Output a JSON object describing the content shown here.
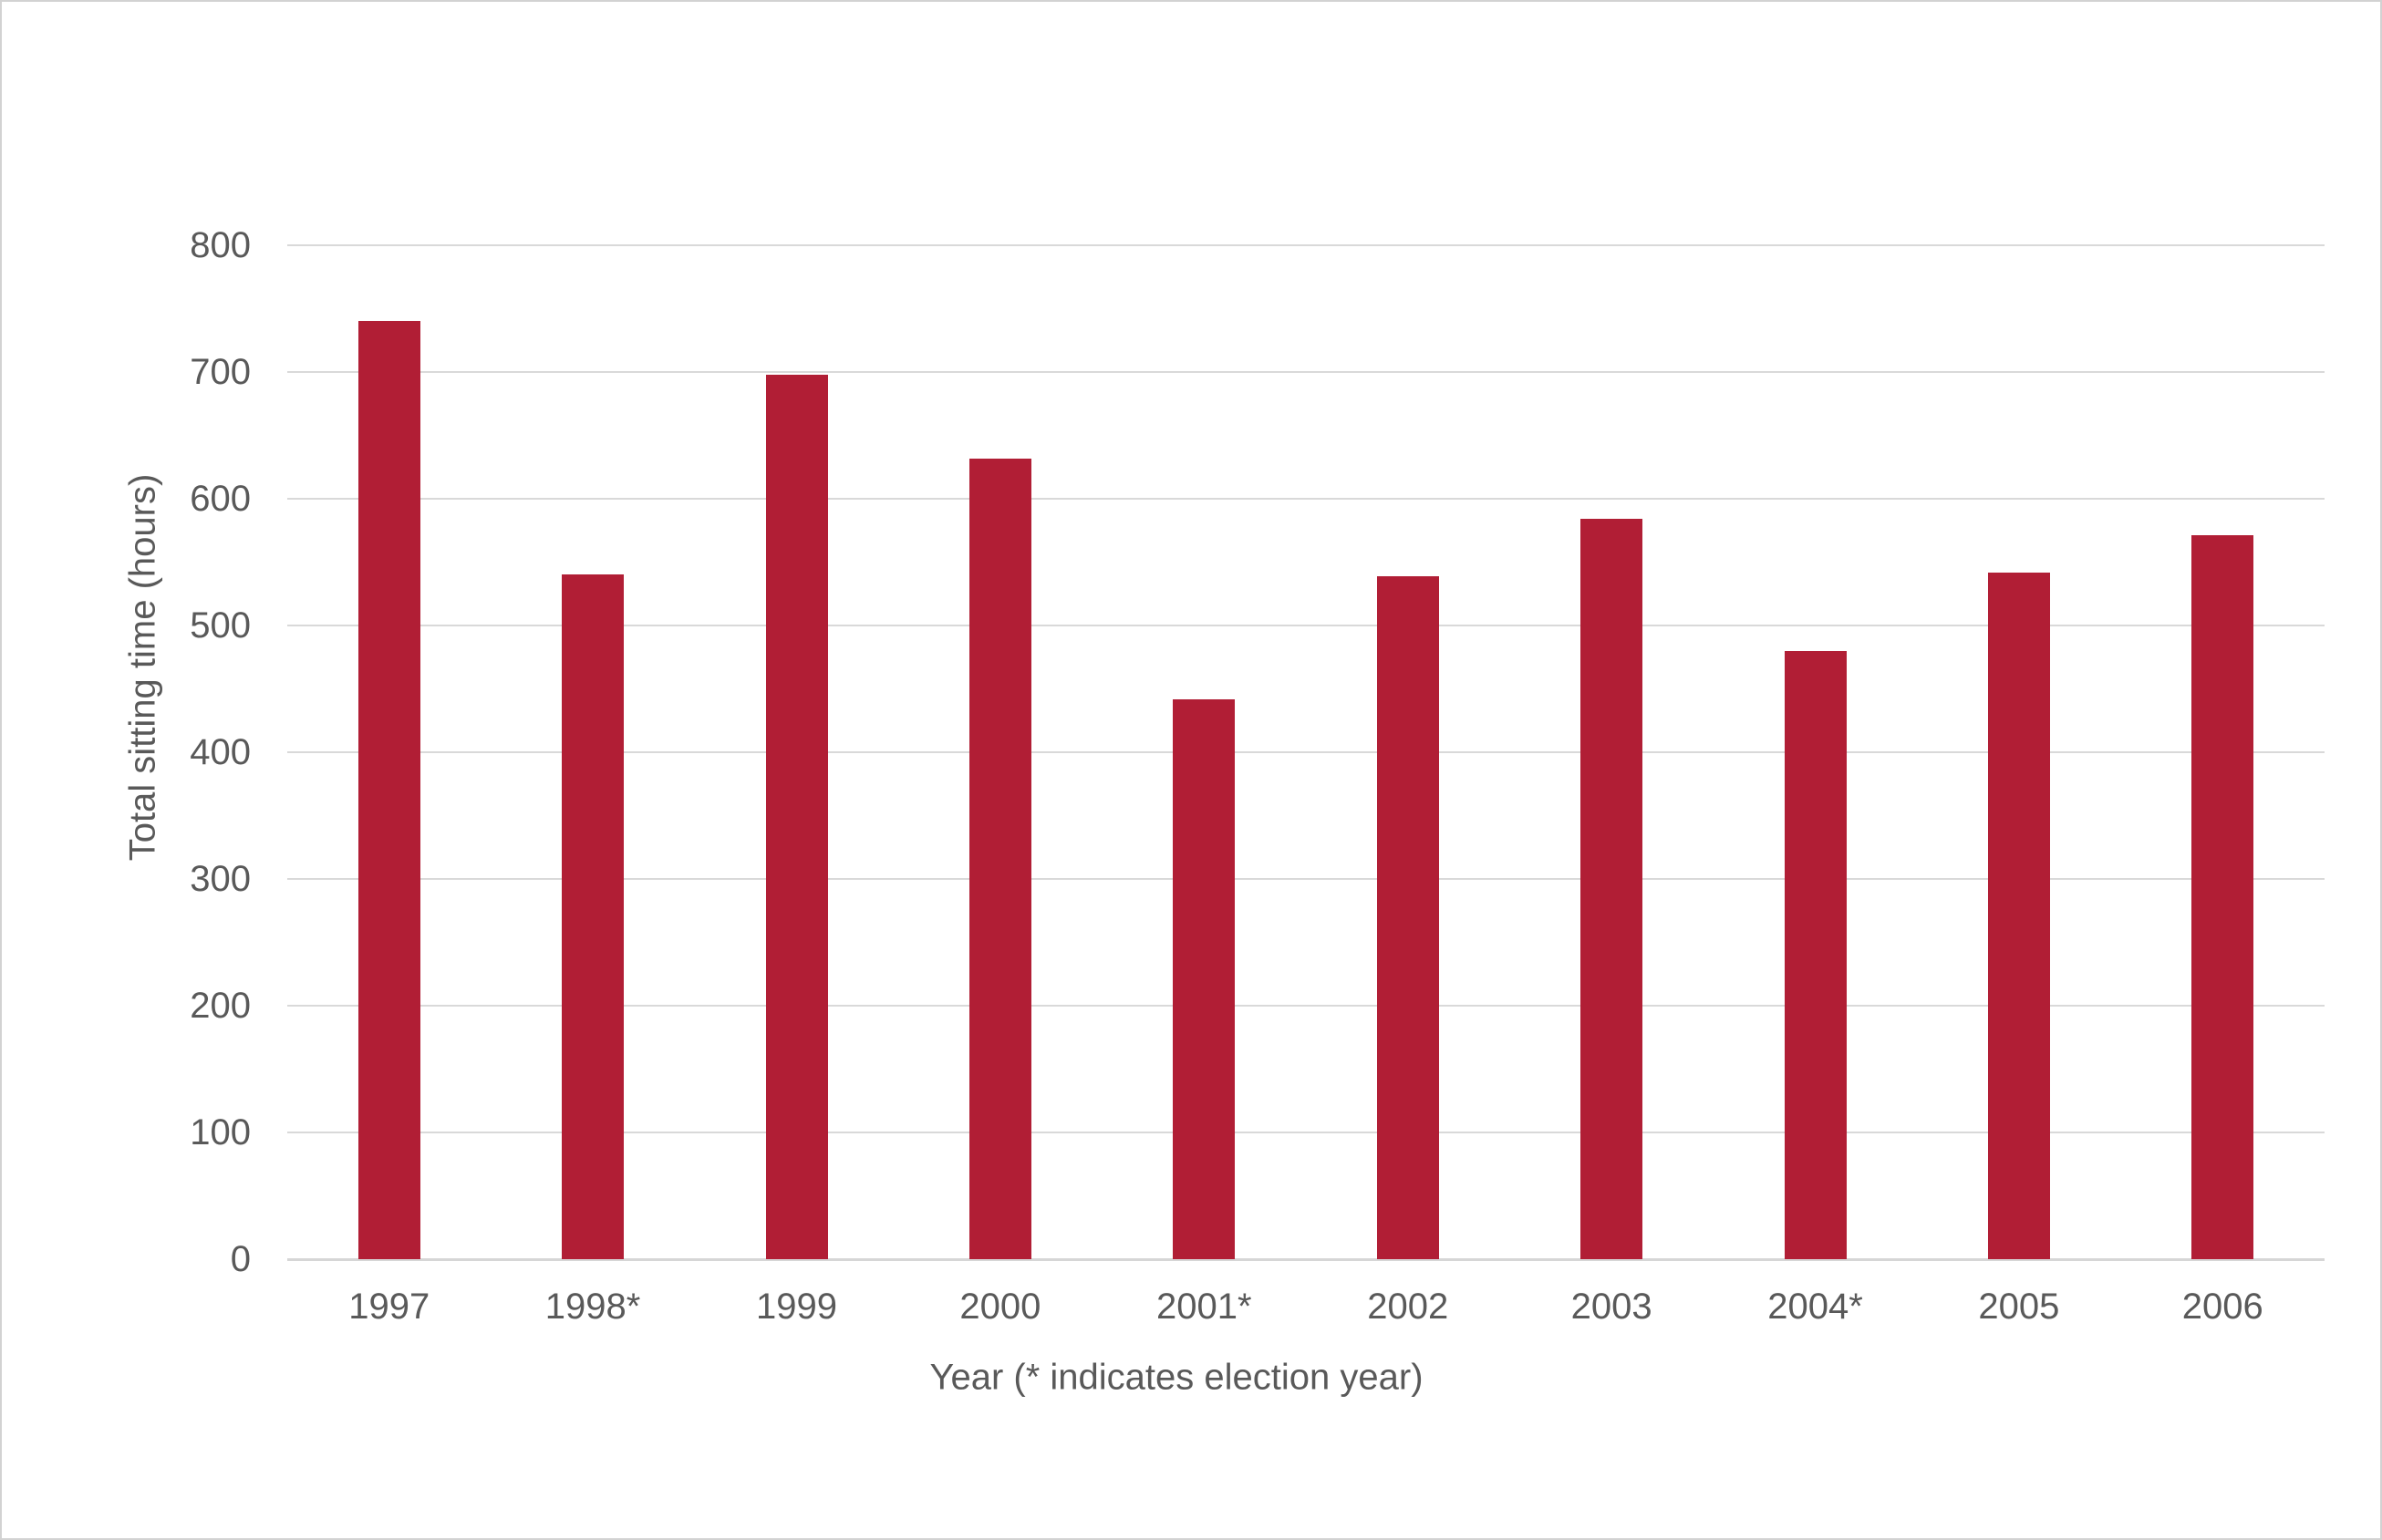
{
  "chart_data": {
    "type": "bar",
    "categories": [
      "1997",
      "1998*",
      "1999",
      "2000",
      "2001*",
      "2002",
      "2003",
      "2004*",
      "2005",
      "2006"
    ],
    "values": [
      740,
      540,
      698,
      632,
      442,
      539,
      584,
      480,
      542,
      571
    ],
    "title": "",
    "xlabel": "Year (* indicates election year)",
    "ylabel": "Total sitting time (hours)",
    "ylim": [
      0,
      800
    ],
    "ytick_step": 100,
    "ytick_labels": [
      "0",
      "100",
      "200",
      "300",
      "400",
      "500",
      "600",
      "700",
      "800"
    ],
    "grid": "horizontal",
    "legend": "none",
    "colors": {
      "bar": "#B11E35",
      "gridline": "#D9D9D9",
      "axis_line": "#D6D6D6",
      "text": "#595959",
      "background": "#FFFFFF",
      "frame_border": "#D2D2D2"
    }
  }
}
